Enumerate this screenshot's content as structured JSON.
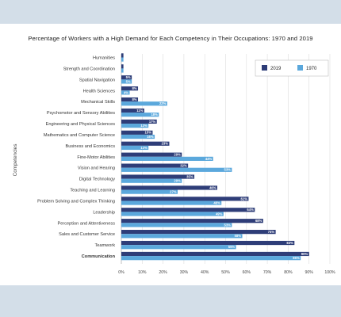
{
  "chart_data": {
    "type": "bar",
    "orientation": "horizontal",
    "title": "Percentage of Workers with a High Demand for Each Competency in Their Occupations: 1970 and 2019",
    "ylabel": "Competencies",
    "xlabel": "",
    "xlim": [
      0,
      100
    ],
    "x_ticks": [
      "0%",
      "10%",
      "20%",
      "30%",
      "40%",
      "50%",
      "60%",
      "70%",
      "80%",
      "90%",
      "100%"
    ],
    "grid": true,
    "legend_position": "top-right",
    "categories": [
      "Humanities",
      "Strength and Coordination",
      "Spatial Navigation",
      "Health Sciences",
      "Mechanical Skills",
      "Psychomotor and Sensory Abilities",
      "Engineering and Physical Sciences",
      "Mathematics and Computer Science",
      "Business and Economics",
      "Fine-Motor Abilities",
      "Vision and Hearing",
      "Digital Technology",
      "Teaching and Learning",
      "Problem Solving and Complex Thinking",
      "Leadership",
      "Perception and Attentiveness",
      "Sales and Customer Service",
      "Teamwork",
      "Communication"
    ],
    "bold_category": "Communication",
    "series": [
      {
        "name": "2019",
        "color": "#2e3d78",
        "values": [
          1,
          1,
          5,
          8,
          8,
          11,
          17,
          15,
          23,
          29,
          32,
          35,
          46,
          61,
          64,
          68,
          74,
          83,
          90
        ],
        "labels": [
          "1%",
          "1%",
          "5%",
          "8%",
          "8%",
          "11%",
          "17%",
          "15%",
          "23%",
          "29%",
          "32%",
          "35%",
          "46%",
          "61%",
          "64%",
          "68%",
          "74%",
          "83%",
          "90%"
        ]
      },
      {
        "name": "1970",
        "color": "#5ba8dc",
        "values": [
          1,
          1,
          5,
          4,
          22,
          18,
          13,
          16,
          13,
          44,
          53,
          29,
          27,
          48,
          49,
          53,
          58,
          55,
          86
        ],
        "labels": [
          "1%",
          "1%",
          "5%",
          "4%",
          "22%",
          "18%",
          "13%",
          "16%",
          "13%",
          "44%",
          "53%",
          "29%",
          "27%",
          "48%",
          "49%",
          "53%",
          "58%",
          "55%",
          "86%"
        ]
      }
    ]
  }
}
